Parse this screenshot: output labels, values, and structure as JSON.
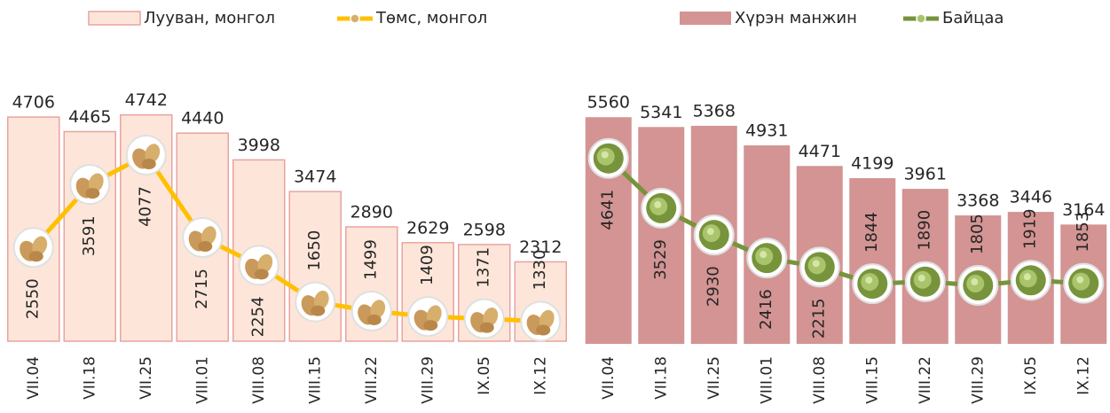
{
  "chart_data": [
    {
      "type": "combo",
      "legend": "top",
      "categories": [
        "VII.04",
        "VII.18",
        "VII.25",
        "VIII.01",
        "VIII.08",
        "VIII.15",
        "VIII.22",
        "VIII.29",
        "IX.05",
        "IX.12"
      ],
      "ylim": [
        1000,
        5000
      ],
      "series": [
        {
          "name": "Лууван, монгол",
          "type": "bar",
          "color": "#fde6d9",
          "values": [
            4706,
            4465,
            4742,
            4440,
            3998,
            3474,
            2890,
            2629,
            2598,
            2312
          ]
        },
        {
          "name": "Төмс, монгол",
          "type": "line",
          "color": "#ffc000",
          "values": [
            2550,
            3591,
            4077,
            2715,
            2254,
            1650,
            1499,
            1409,
            1371,
            1330
          ]
        }
      ]
    },
    {
      "type": "combo",
      "legend": "top",
      "categories": [
        "VII.04",
        "VII.18",
        "VII.25",
        "VIII.01",
        "VIII.08",
        "VIII.15",
        "VIII.22",
        "VIII.29",
        "IX.05",
        "IX.12"
      ],
      "ylim": [
        500,
        6000
      ],
      "series": [
        {
          "name": "Хүрэн манжин",
          "type": "bar",
          "color": "#d39493",
          "values": [
            5560,
            5341,
            5368,
            4931,
            4471,
            4199,
            3961,
            3368,
            3446,
            3164
          ]
        },
        {
          "name": "Байцаа",
          "type": "line",
          "color": "#77933c",
          "values": [
            4641,
            3529,
            2930,
            2416,
            2215,
            1844,
            1890,
            1805,
            1919,
            1853
          ]
        }
      ]
    }
  ]
}
